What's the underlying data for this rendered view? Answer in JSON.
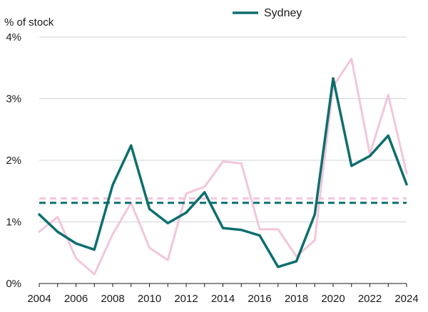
{
  "chart_data": {
    "type": "line",
    "ylabel": "% of stock",
    "x": [
      "2004",
      "2005",
      "2006",
      "2007",
      "2008",
      "2009",
      "2010",
      "2011",
      "2012",
      "2013",
      "2014",
      "2015",
      "2016",
      "2017",
      "2018",
      "2019",
      "2020",
      "2021",
      "2022",
      "2023",
      "2024"
    ],
    "x_tick_labels": [
      "2004",
      "2006",
      "2008",
      "2010",
      "2012",
      "2014",
      "2016",
      "2018",
      "2020",
      "2022",
      "2024"
    ],
    "ylim": [
      0,
      4
    ],
    "y_ticks": [
      0,
      1,
      2,
      3,
      4
    ],
    "y_tick_labels": [
      "0%",
      "1%",
      "2%",
      "3%",
      "4%"
    ],
    "grid": "horizontal",
    "legend_position": "top-center",
    "series": [
      {
        "name": "Sydney",
        "color": "#0e6e6e",
        "style": "solid",
        "values": [
          1.12,
          0.84,
          0.65,
          0.55,
          1.6,
          2.24,
          1.21,
          0.98,
          1.15,
          1.48,
          0.9,
          0.87,
          0.78,
          0.27,
          0.36,
          1.12,
          3.33,
          1.91,
          2.07,
          2.4,
          1.61
        ]
      },
      {
        "color": "#f2c6dc",
        "style": "solid",
        "values": [
          0.84,
          1.08,
          0.41,
          0.15,
          0.8,
          1.31,
          0.58,
          0.38,
          1.46,
          1.57,
          1.98,
          1.95,
          0.88,
          0.88,
          0.44,
          0.7,
          3.2,
          3.65,
          2.1,
          3.06,
          1.79
        ]
      },
      {
        "color": "#0e6e6e",
        "style": "dashed",
        "values": [
          1.31,
          1.31,
          1.31,
          1.31,
          1.31,
          1.31,
          1.31,
          1.31,
          1.31,
          1.31,
          1.31,
          1.31,
          1.31,
          1.31,
          1.31,
          1.31,
          1.31,
          1.31,
          1.31,
          1.31,
          1.31
        ]
      },
      {
        "color": "#f2c6dc",
        "style": "dashed",
        "values": [
          1.38,
          1.38,
          1.38,
          1.38,
          1.38,
          1.38,
          1.38,
          1.38,
          1.38,
          1.38,
          1.38,
          1.38,
          1.38,
          1.38,
          1.38,
          1.38,
          1.38,
          1.38,
          1.38,
          1.38,
          1.38
        ]
      }
    ],
    "colors": {
      "grid": "#cfd3d6",
      "axis": "#1a1a1a"
    }
  }
}
